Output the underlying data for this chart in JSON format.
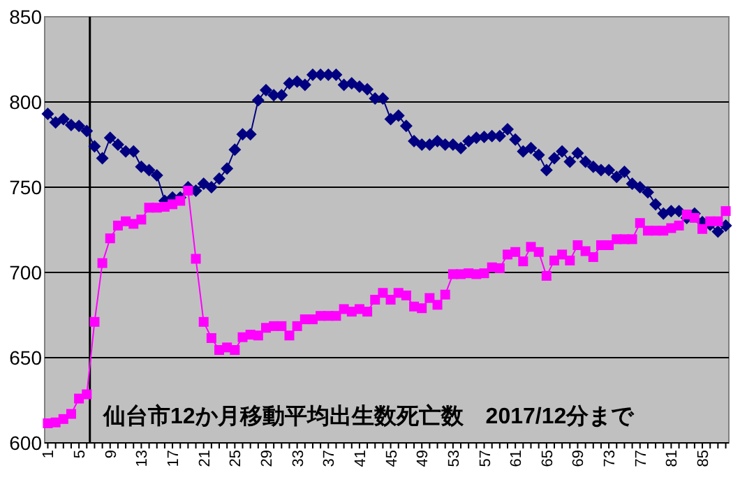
{
  "chart_data": {
    "type": "line",
    "x": [
      1,
      2,
      3,
      4,
      5,
      6,
      7,
      8,
      9,
      10,
      11,
      12,
      13,
      14,
      15,
      16,
      17,
      18,
      19,
      20,
      21,
      22,
      23,
      24,
      25,
      26,
      27,
      28,
      29,
      30,
      31,
      32,
      33,
      34,
      35,
      36,
      37,
      38,
      39,
      40,
      41,
      42,
      43,
      44,
      45,
      46,
      47,
      48,
      49,
      50,
      51,
      52,
      53,
      54,
      55,
      56,
      57,
      58,
      59,
      60,
      61,
      62,
      63,
      64,
      65,
      66,
      67,
      68,
      69,
      70,
      71,
      72,
      73,
      74,
      75,
      76,
      77,
      78,
      79,
      80,
      81,
      82,
      83,
      84,
      85,
      86,
      87,
      88
    ],
    "series": [
      {
        "color": "#000080",
        "marker": "diamond",
        "values": [
          793,
          788,
          790,
          786.5,
          786,
          783,
          774,
          767,
          779,
          775,
          771,
          771,
          762,
          760,
          757,
          742,
          744,
          744,
          750,
          748,
          752,
          750,
          755,
          761,
          772,
          781,
          781,
          801,
          807,
          804,
          804,
          811,
          812,
          810,
          816,
          816,
          816,
          816,
          810,
          811,
          809,
          807.5,
          802,
          802,
          790,
          792,
          786,
          777,
          775,
          775,
          777,
          775,
          775,
          773,
          777,
          779,
          779.5,
          780,
          780,
          784,
          778,
          771,
          773,
          769,
          760,
          767,
          771,
          765,
          770,
          765,
          762,
          760,
          760,
          756,
          759,
          752,
          750,
          747,
          740,
          734.5,
          736,
          736,
          732,
          734.5,
          729.5,
          728,
          724,
          727.5
        ]
      },
      {
        "color": "#ff00ff",
        "marker": "square",
        "values": [
          611.5,
          612,
          614,
          617,
          626,
          628.5,
          671,
          705.5,
          720,
          727.5,
          730,
          728.5,
          731,
          738,
          738,
          738.5,
          740,
          742,
          748,
          708,
          671,
          661.5,
          654.5,
          656,
          654.5,
          662,
          663.5,
          663,
          667.5,
          668.5,
          668.5,
          663,
          668.5,
          672.5,
          672.5,
          674.5,
          674.5,
          674.5,
          678.5,
          677,
          678.5,
          677,
          684,
          688,
          684,
          688,
          686.5,
          680,
          679,
          685,
          681,
          687,
          699,
          699,
          699.5,
          699,
          699.5,
          703,
          702.5,
          710.5,
          712,
          706.5,
          715,
          712,
          698,
          707,
          710.5,
          707,
          716,
          712.5,
          709,
          716,
          716,
          719.5,
          719.5,
          719.5,
          729,
          724.5,
          724.5,
          724.5,
          726,
          727.5,
          734,
          732,
          725.5,
          730,
          730,
          736
        ]
      }
    ],
    "xlim": [
      0.6,
      88.4
    ],
    "xticks": [
      1,
      {
        "value": 2,
        "label": null
      },
      {
        "value": 3,
        "label": null
      },
      {
        "value": 4,
        "label": null
      },
      5,
      {
        "value": 6,
        "label": null
      },
      {
        "value": 7,
        "label": null
      },
      {
        "value": 8,
        "label": null
      },
      9,
      {
        "value": 10,
        "label": null
      },
      {
        "value": 11,
        "label": null
      },
      {
        "value": 12,
        "label": null
      },
      13,
      {
        "value": 14,
        "label": null
      },
      {
        "value": 15,
        "label": null
      },
      {
        "value": 16,
        "label": null
      },
      17,
      {
        "value": 18,
        "label": null
      },
      {
        "value": 19,
        "label": null
      },
      {
        "value": 20,
        "label": null
      },
      21,
      {
        "value": 22,
        "label": null
      },
      {
        "value": 23,
        "label": null
      },
      {
        "value": 24,
        "label": null
      },
      25,
      {
        "value": 26,
        "label": null
      },
      {
        "value": 27,
        "label": null
      },
      {
        "value": 28,
        "label": null
      },
      29,
      {
        "value": 30,
        "label": null
      },
      {
        "value": 31,
        "label": null
      },
      {
        "value": 32,
        "label": null
      },
      33,
      {
        "value": 34,
        "label": null
      },
      {
        "value": 35,
        "label": null
      },
      {
        "value": 36,
        "label": null
      },
      37,
      {
        "value": 38,
        "label": null
      },
      {
        "value": 39,
        "label": null
      },
      {
        "value": 40,
        "label": null
      },
      41,
      {
        "value": 42,
        "label": null
      },
      {
        "value": 43,
        "label": null
      },
      {
        "value": 44,
        "label": null
      },
      45,
      {
        "value": 46,
        "label": null
      },
      {
        "value": 47,
        "label": null
      },
      {
        "value": 48,
        "label": null
      },
      49,
      {
        "value": 50,
        "label": null
      },
      {
        "value": 51,
        "label": null
      },
      {
        "value": 52,
        "label": null
      },
      53,
      {
        "value": 54,
        "label": null
      },
      {
        "value": 55,
        "label": null
      },
      {
        "value": 56,
        "label": null
      },
      57,
      {
        "value": 58,
        "label": null
      },
      {
        "value": 59,
        "label": null
      },
      {
        "value": 60,
        "label": null
      },
      61,
      {
        "value": 62,
        "label": null
      },
      {
        "value": 63,
        "label": null
      },
      {
        "value": 64,
        "label": null
      },
      65,
      {
        "value": 66,
        "label": null
      },
      {
        "value": 67,
        "label": null
      },
      {
        "value": 68,
        "label": null
      },
      69,
      {
        "value": 70,
        "label": null
      },
      {
        "value": 71,
        "label": null
      },
      {
        "value": 72,
        "label": null
      },
      73,
      {
        "value": 74,
        "label": null
      },
      {
        "value": 75,
        "label": null
      },
      {
        "value": 76,
        "label": null
      },
      77,
      {
        "value": 78,
        "label": null
      },
      {
        "value": 79,
        "label": null
      },
      {
        "value": 80,
        "label": null
      },
      81,
      {
        "value": 82,
        "label": null
      },
      {
        "value": 83,
        "label": null
      },
      {
        "value": 84,
        "label": null
      },
      85,
      {
        "value": 86,
        "label": null
      },
      {
        "value": 87,
        "label": null
      },
      {
        "value": 88,
        "label": null
      }
    ],
    "ylim": [
      600,
      850
    ],
    "yticks": [
      600,
      650,
      700,
      750,
      800,
      850
    ],
    "grid": "y",
    "ref_lines": [
      {
        "axis": "x",
        "value": 6.4,
        "color": "#000000"
      }
    ],
    "annotations": [
      "仙台市12か月移動平均出生数死亡数　2017/12分まで"
    ]
  }
}
